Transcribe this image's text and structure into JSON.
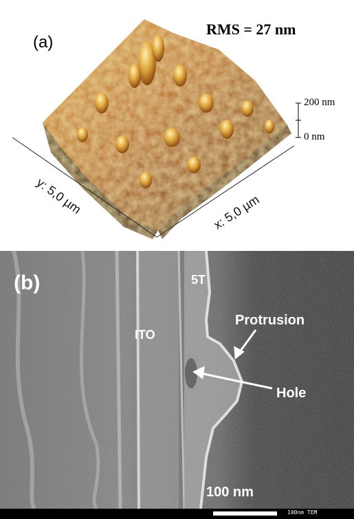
{
  "panel_a": {
    "label": "(a)",
    "rms_text": "RMS = 27 nm",
    "z_top": "200 nm",
    "z_bottom": "0 nm",
    "y_axis": "y: 5,0 µm",
    "x_axis": "x: 5,0 µm",
    "colors": {
      "surface_dark": "#5a2e08",
      "surface_mid": "#b86d18",
      "surface_light": "#f4d27c"
    }
  },
  "panel_b": {
    "label": "(b)",
    "layer_5t": "5T",
    "layer_ito": "ITO",
    "protrusion": "Protrusion",
    "hole": "Hole",
    "scale_label": "100 nm",
    "info_bar_text": "100nm TEM"
  }
}
